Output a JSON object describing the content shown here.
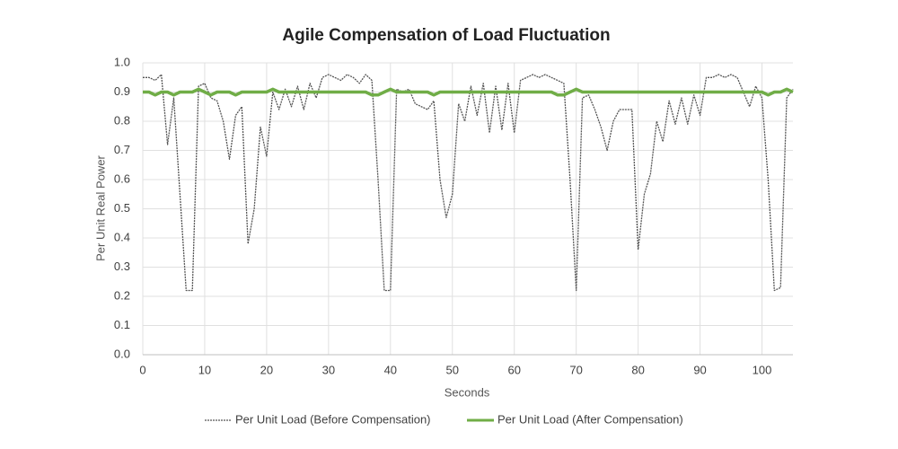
{
  "chart_data": {
    "type": "line",
    "title": "Agile Compensation of  Load Fluctuation",
    "x_label": "Seconds",
    "y_label": "Per Unit Real Power",
    "x": [
      0,
      1,
      2,
      3,
      4,
      5,
      6,
      7,
      8,
      9,
      10,
      11,
      12,
      13,
      14,
      15,
      16,
      17,
      18,
      19,
      20,
      21,
      22,
      23,
      24,
      25,
      26,
      27,
      28,
      29,
      30,
      31,
      32,
      33,
      34,
      35,
      36,
      37,
      38,
      39,
      40,
      41,
      42,
      43,
      44,
      45,
      46,
      47,
      48,
      49,
      50,
      51,
      52,
      53,
      54,
      55,
      56,
      57,
      58,
      59,
      60,
      61,
      62,
      63,
      64,
      65,
      66,
      67,
      68,
      69,
      70,
      71,
      72,
      73,
      74,
      75,
      76,
      77,
      78,
      79,
      80,
      81,
      82,
      83,
      84,
      85,
      86,
      87,
      88,
      89,
      90,
      91,
      92,
      93,
      94,
      95,
      96,
      97,
      98,
      99,
      100,
      101,
      102,
      103,
      104,
      105
    ],
    "series": [
      {
        "name": "Per Unit Load (Before Compensation)",
        "color": "#555555",
        "dashed": true,
        "values": [
          0.95,
          0.95,
          0.94,
          0.96,
          0.72,
          0.88,
          0.55,
          0.22,
          0.22,
          0.92,
          0.93,
          0.88,
          0.87,
          0.8,
          0.67,
          0.82,
          0.85,
          0.38,
          0.5,
          0.78,
          0.68,
          0.9,
          0.84,
          0.91,
          0.85,
          0.92,
          0.84,
          0.93,
          0.88,
          0.95,
          0.96,
          0.95,
          0.94,
          0.96,
          0.95,
          0.93,
          0.96,
          0.94,
          0.6,
          0.22,
          0.22,
          0.91,
          0.9,
          0.91,
          0.86,
          0.85,
          0.84,
          0.87,
          0.6,
          0.47,
          0.55,
          0.86,
          0.8,
          0.92,
          0.82,
          0.93,
          0.76,
          0.92,
          0.77,
          0.93,
          0.76,
          0.94,
          0.95,
          0.96,
          0.95,
          0.96,
          0.95,
          0.94,
          0.93,
          0.6,
          0.22,
          0.88,
          0.89,
          0.84,
          0.78,
          0.7,
          0.8,
          0.84,
          0.84,
          0.84,
          0.36,
          0.55,
          0.62,
          0.8,
          0.73,
          0.87,
          0.79,
          0.88,
          0.79,
          0.89,
          0.82,
          0.95,
          0.95,
          0.96,
          0.95,
          0.96,
          0.95,
          0.9,
          0.85,
          0.92,
          0.88,
          0.6,
          0.22,
          0.23,
          0.88,
          0.91
        ]
      },
      {
        "name": "Per Unit Load (After Compensation)",
        "color": "#70ad47",
        "dashed": false,
        "values": [
          0.9,
          0.9,
          0.89,
          0.9,
          0.9,
          0.89,
          0.9,
          0.9,
          0.9,
          0.91,
          0.9,
          0.89,
          0.9,
          0.9,
          0.9,
          0.89,
          0.9,
          0.9,
          0.9,
          0.9,
          0.9,
          0.91,
          0.9,
          0.9,
          0.9,
          0.9,
          0.9,
          0.9,
          0.9,
          0.9,
          0.9,
          0.9,
          0.9,
          0.9,
          0.9,
          0.9,
          0.9,
          0.89,
          0.89,
          0.9,
          0.91,
          0.9,
          0.9,
          0.9,
          0.9,
          0.9,
          0.9,
          0.89,
          0.9,
          0.9,
          0.9,
          0.9,
          0.9,
          0.9,
          0.9,
          0.9,
          0.9,
          0.9,
          0.9,
          0.9,
          0.9,
          0.9,
          0.9,
          0.9,
          0.9,
          0.9,
          0.9,
          0.89,
          0.89,
          0.9,
          0.91,
          0.9,
          0.9,
          0.9,
          0.9,
          0.9,
          0.9,
          0.9,
          0.9,
          0.9,
          0.9,
          0.9,
          0.9,
          0.9,
          0.9,
          0.9,
          0.9,
          0.9,
          0.9,
          0.9,
          0.9,
          0.9,
          0.9,
          0.9,
          0.9,
          0.9,
          0.9,
          0.9,
          0.9,
          0.9,
          0.9,
          0.89,
          0.9,
          0.9,
          0.91,
          0.9
        ]
      }
    ],
    "xlim": [
      0,
      105
    ],
    "xticks": [
      0,
      10,
      20,
      30,
      40,
      50,
      60,
      70,
      80,
      90,
      100
    ],
    "ylim": [
      0,
      1
    ],
    "yticks": [
      {
        "value": 0,
        "label": "0.0"
      },
      {
        "value": 0.1,
        "label": "0.1"
      },
      {
        "value": 0.2,
        "label": "0.2"
      },
      {
        "value": 0.3,
        "label": "0.3"
      },
      {
        "value": 0.4,
        "label": "0.4"
      },
      {
        "value": 0.5,
        "label": "0.5"
      },
      {
        "value": 0.6,
        "label": "0.6"
      },
      {
        "value": 0.7,
        "label": "0.7"
      },
      {
        "value": 0.8,
        "label": "0.8"
      },
      {
        "value": 0.9,
        "label": "0.9"
      },
      {
        "value": 1,
        "label": "1.0"
      }
    ],
    "grid": true,
    "legend": "bottom"
  }
}
